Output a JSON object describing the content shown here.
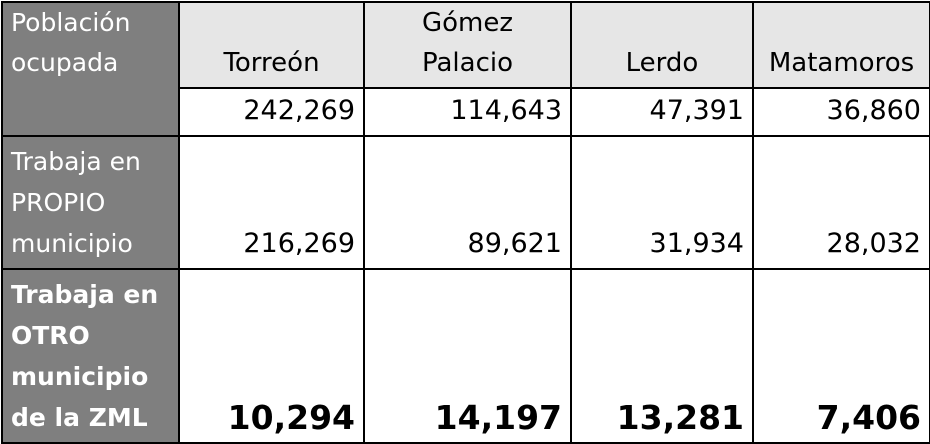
{
  "table": {
    "header_label_lines": [
      "Población",
      "ocupada"
    ],
    "columns": [
      {
        "lines": [
          "Torreón"
        ]
      },
      {
        "lines": [
          "Gómez",
          "Palacio"
        ]
      },
      {
        "lines": [
          "Lerdo"
        ]
      },
      {
        "lines": [
          "Matamoros"
        ]
      }
    ],
    "totals": [
      "242,269",
      "114,643",
      "47,391",
      "36,860"
    ],
    "rows": [
      {
        "label_lines": [
          "Trabaja en",
          "PROPIO",
          "municipio"
        ],
        "values": [
          "216,269",
          "89,621",
          "31,934",
          "28,032"
        ]
      },
      {
        "label_lines": [
          "Trabaja en",
          "OTRO",
          "municipio",
          "de la ZML"
        ],
        "values": [
          "10,294",
          "14,197",
          "13,281",
          "7,406"
        ]
      }
    ],
    "colors": {
      "row_header_bg": "#7f7f7f",
      "row_header_text": "#ffffff",
      "column_header_bg": "#e6e6e6",
      "border": "#000000"
    }
  }
}
